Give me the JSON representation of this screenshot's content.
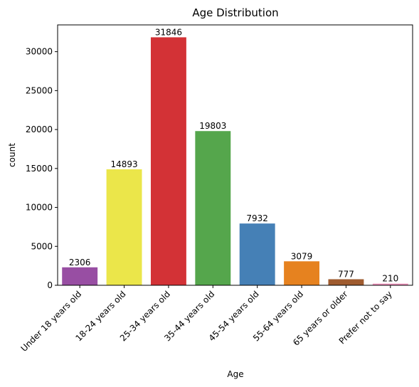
{
  "chart_data": {
    "type": "bar",
    "title": "Age Distribution",
    "xlabel": "Age",
    "ylabel": "count",
    "categories": [
      "Under 18 years old",
      "18-24 years old",
      "25-34 years old",
      "35-44 years old",
      "45-54 years old",
      "55-64 years old",
      "65 years or older",
      "Prefer not to say"
    ],
    "values": [
      2306,
      14893,
      31846,
      19803,
      7932,
      3079,
      777,
      210
    ],
    "data_labels": [
      "2306",
      "14893",
      "31846",
      "19803",
      "7932",
      "3079",
      "777",
      "210"
    ],
    "colors": [
      "#984ea3",
      "#ebe64a",
      "#d33236",
      "#55a64c",
      "#4580b6",
      "#e6821f",
      "#9f5b2f",
      "#ee91bb"
    ],
    "ylim": [
      0,
      33438
    ],
    "yticks": [
      0,
      5000,
      10000,
      15000,
      20000,
      25000,
      30000
    ],
    "ytick_labels": [
      "0",
      "5000",
      "10000",
      "15000",
      "20000",
      "25000",
      "30000"
    ],
    "grid": false,
    "legend": "none"
  }
}
